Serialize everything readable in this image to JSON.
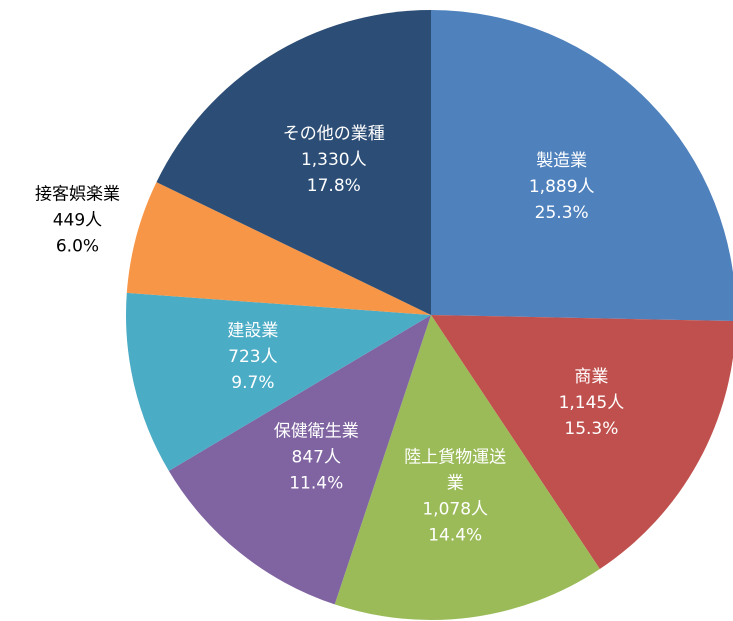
{
  "chart_data": {
    "type": "pie",
    "categories": [
      "製造業",
      "商業",
      "陸上貨物運送業",
      "保健衛生業",
      "建設業",
      "接客娯楽業",
      "その他の業種"
    ],
    "values": [
      1889,
      1145,
      1078,
      847,
      723,
      449,
      1330
    ],
    "value_labels": [
      "1,889人",
      "1,145人",
      "1,078人",
      "847人",
      "723人",
      "449人",
      "1,330人"
    ],
    "percent_labels": [
      "25.3%",
      "15.3%",
      "14.4%",
      "11.4%",
      "9.7%",
      "6.0%",
      "17.8%"
    ],
    "colors": [
      "#4f81bd",
      "#c0504d",
      "#9bbb59",
      "#8064a2",
      "#4bacc6",
      "#f79646",
      "#2c4d75"
    ]
  }
}
